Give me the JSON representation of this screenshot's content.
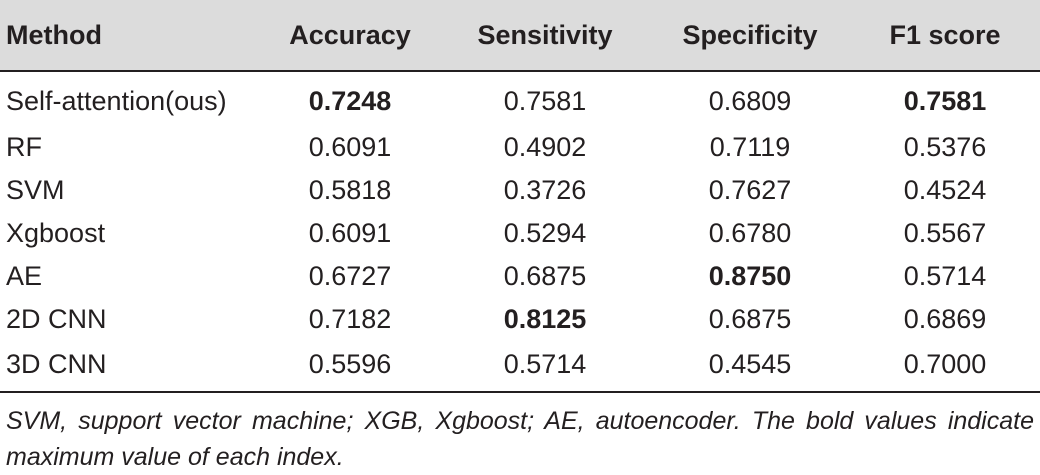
{
  "table": {
    "columns": [
      "Method",
      "Accuracy",
      "Sensitivity",
      "Specificity",
      "F1 score"
    ],
    "rows": [
      {
        "method": "Self-attention(ous)",
        "accuracy": "0.7248",
        "sensitivity": "0.7581",
        "specificity": "0.6809",
        "f1": "0.7581",
        "bold": [
          "accuracy",
          "f1"
        ]
      },
      {
        "method": "RF",
        "accuracy": "0.6091",
        "sensitivity": "0.4902",
        "specificity": "0.7119",
        "f1": "0.5376",
        "bold": []
      },
      {
        "method": "SVM",
        "accuracy": "0.5818",
        "sensitivity": "0.3726",
        "specificity": "0.7627",
        "f1": "0.4524",
        "bold": []
      },
      {
        "method": "Xgboost",
        "accuracy": "0.6091",
        "sensitivity": "0.5294",
        "specificity": "0.6780",
        "f1": "0.5567",
        "bold": []
      },
      {
        "method": "AE",
        "accuracy": "0.6727",
        "sensitivity": "0.6875",
        "specificity": "0.8750",
        "f1": "0.5714",
        "bold": [
          "specificity"
        ]
      },
      {
        "method": "2D CNN",
        "accuracy": "0.7182",
        "sensitivity": "0.8125",
        "specificity": "0.6875",
        "f1": "0.6869",
        "bold": [
          "sensitivity"
        ]
      },
      {
        "method": "3D CNN",
        "accuracy": "0.5596",
        "sensitivity": "0.5714",
        "specificity": "0.4545",
        "f1": "0.7000",
        "bold": []
      }
    ]
  },
  "footnote": "SVM, support vector machine; XGB, Xgboost; AE, autoencoder. The bold values indicate maximum value of each index."
}
